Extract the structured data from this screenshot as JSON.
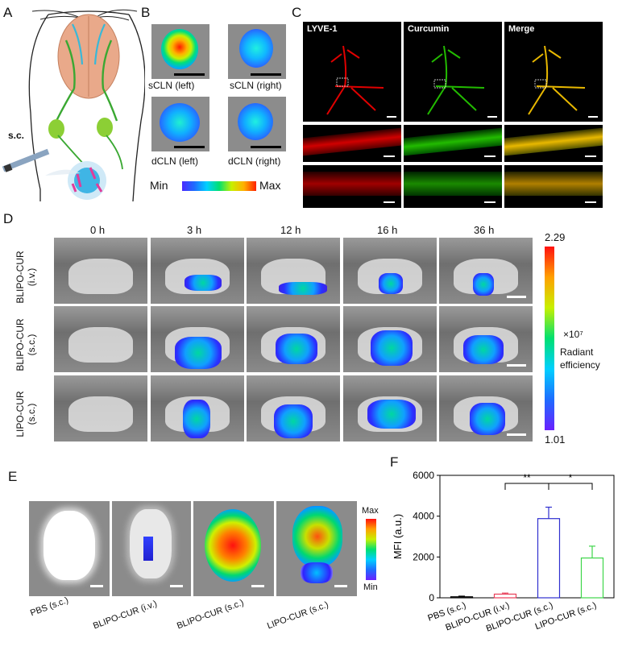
{
  "panelA": {
    "label": "A",
    "route": "s.c."
  },
  "panelB": {
    "label": "B",
    "tiles": [
      {
        "caption": "sCLN (left)"
      },
      {
        "caption": "sCLN (right)"
      },
      {
        "caption": "dCLN (left)"
      },
      {
        "caption": "dCLN (right)"
      }
    ],
    "scale_min": "Min",
    "scale_max": "Max"
  },
  "panelC": {
    "label": "C",
    "channels": [
      "LYVE-1",
      "Curcumin",
      "Merge"
    ],
    "colors": {
      "lyve": "#e00000",
      "curcumin": "#22bb00",
      "merge": "#e8b800"
    }
  },
  "panelD": {
    "label": "D",
    "timepoints": [
      "0 h",
      "3 h",
      "12 h",
      "16 h",
      "36 h"
    ],
    "rows": [
      {
        "name": "BLIPO-CUR",
        "route": "(i.v.)"
      },
      {
        "name": "BLIPO-CUR",
        "route": "(s.c.)"
      },
      {
        "name": "LIPO-CUR",
        "route": "(s.c.)"
      }
    ],
    "colorbar": {
      "max": "2.29",
      "min": "1.01",
      "multiplier": "×10⁷",
      "title_line1": "Radiant",
      "title_line2": "efficiency"
    }
  },
  "panelE": {
    "label": "E",
    "tiles": [
      {
        "caption": "PBS (s.c.)"
      },
      {
        "caption": "BLIPO-CUR (i.v.)"
      },
      {
        "caption": "BLIPO-CUR (s.c.)"
      },
      {
        "caption": "LIPO-CUR (s.c.)"
      }
    ],
    "scale_max": "Max",
    "scale_min": "Min"
  },
  "panelF": {
    "label": "F"
  },
  "chart_data": {
    "type": "bar",
    "ylabel": "MFI (a.u.)",
    "ylim": [
      0,
      6000
    ],
    "yticks": [
      0,
      2000,
      4000,
      6000
    ],
    "categories": [
      "PBS (s.c.)",
      "BLIPO-CUR (i.v.)",
      "BLIPO-CUR (s.c.)",
      "LIPO-CUR (s.c.)"
    ],
    "values": [
      50,
      180,
      3880,
      1950
    ],
    "errors": [
      30,
      50,
      560,
      580
    ],
    "colors": [
      "#000000",
      "#e8405a",
      "#2f2fcf",
      "#3ed64a"
    ],
    "significance": [
      {
        "from": 1,
        "to": 2,
        "label": "**"
      },
      {
        "from": 2,
        "to": 3,
        "label": "*"
      }
    ]
  }
}
